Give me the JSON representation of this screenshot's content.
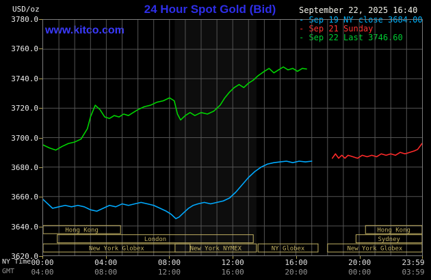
{
  "header": {
    "units_label": "USD/oz",
    "title": "24 Hour Spot Gold (Bid)",
    "datetime": "September 22, 2025 16:40",
    "site": "www.kitco.com",
    "legend": [
      {
        "label": "Sep 19 NY close 3684.00",
        "color": "#00b4ff"
      },
      {
        "label": "Sep 21 Sunday",
        "color": "#ff3333"
      },
      {
        "label": "Sep 22 Last 3746.60",
        "color": "#00cc33"
      }
    ]
  },
  "axes": {
    "x_row1_label": "NY Time",
    "x_row2_label": "GMT",
    "y_ticks": [
      "3780.0",
      "3760.0",
      "3740.0",
      "3720.0",
      "3700.0",
      "3680.0",
      "3660.0",
      "3640.0",
      "3620.0"
    ],
    "x_tick_hours": [
      0,
      4,
      8,
      12,
      16,
      20,
      23.983
    ],
    "x_ticks_ny": [
      "00:00",
      "04:00",
      "08:00",
      "12:00",
      "16:00",
      "20:00",
      "23:59"
    ],
    "x_ticks_gmt": [
      "04:00",
      "08:00",
      "12:00",
      "16:00",
      "20:00",
      "00:00",
      "03:59"
    ]
  },
  "chart_data": {
    "type": "line",
    "title": "24 Hour Spot Gold (Bid)",
    "ylabel": "USD/oz",
    "ylim": [
      3620,
      3780
    ],
    "y_step": 20,
    "xlim_hours": [
      0,
      23.983
    ],
    "grid": true,
    "legend_position": "top-right",
    "session_color": "#c3b264",
    "highlight_band_hours": [
      8.33,
      13.5
    ],
    "series": [
      {
        "name": "Sep 19 NY close",
        "color": "#00aaff",
        "close": 3684.0,
        "points": [
          [
            0,
            3658
          ],
          [
            0.3,
            3655
          ],
          [
            0.6,
            3652
          ],
          [
            1.0,
            3653
          ],
          [
            1.4,
            3654
          ],
          [
            1.8,
            3653
          ],
          [
            2.2,
            3654
          ],
          [
            2.6,
            3653
          ],
          [
            3.0,
            3651
          ],
          [
            3.4,
            3650
          ],
          [
            3.8,
            3652
          ],
          [
            4.2,
            3654
          ],
          [
            4.6,
            3653
          ],
          [
            5.0,
            3655
          ],
          [
            5.4,
            3654
          ],
          [
            5.8,
            3655
          ],
          [
            6.2,
            3656
          ],
          [
            6.6,
            3655
          ],
          [
            7.0,
            3654
          ],
          [
            7.4,
            3652
          ],
          [
            7.8,
            3650
          ],
          [
            8.1,
            3648
          ],
          [
            8.4,
            3645
          ],
          [
            8.6,
            3646
          ],
          [
            8.9,
            3649
          ],
          [
            9.2,
            3652
          ],
          [
            9.5,
            3654
          ],
          [
            9.8,
            3655
          ],
          [
            10.2,
            3656
          ],
          [
            10.6,
            3655
          ],
          [
            11.0,
            3656
          ],
          [
            11.4,
            3657
          ],
          [
            11.8,
            3659
          ],
          [
            12.2,
            3663
          ],
          [
            12.6,
            3668
          ],
          [
            13.0,
            3673
          ],
          [
            13.4,
            3677
          ],
          [
            13.8,
            3680
          ],
          [
            14.2,
            3682
          ],
          [
            14.6,
            3683
          ],
          [
            15.0,
            3683.5
          ],
          [
            15.4,
            3684
          ],
          [
            15.8,
            3683
          ],
          [
            16.2,
            3684
          ],
          [
            16.6,
            3683.5
          ],
          [
            17.0,
            3684
          ]
        ]
      },
      {
        "name": "Sep 21 Sunday",
        "color": "#ff2a2a",
        "points": [
          [
            18.3,
            3686
          ],
          [
            18.5,
            3689
          ],
          [
            18.7,
            3686
          ],
          [
            18.9,
            3688
          ],
          [
            19.1,
            3686
          ],
          [
            19.3,
            3688
          ],
          [
            19.6,
            3687
          ],
          [
            19.9,
            3686
          ],
          [
            20.2,
            3688
          ],
          [
            20.5,
            3687
          ],
          [
            20.8,
            3688
          ],
          [
            21.1,
            3687
          ],
          [
            21.4,
            3689
          ],
          [
            21.7,
            3688
          ],
          [
            22.0,
            3689
          ],
          [
            22.3,
            3688
          ],
          [
            22.6,
            3690
          ],
          [
            22.9,
            3689
          ],
          [
            23.2,
            3690
          ],
          [
            23.5,
            3691
          ],
          [
            23.7,
            3692
          ],
          [
            23.98,
            3696
          ]
        ]
      },
      {
        "name": "Sep 22 Last",
        "color": "#00d500",
        "last": 3746.6,
        "points": [
          [
            0,
            3695
          ],
          [
            0.4,
            3693
          ],
          [
            0.8,
            3691.5
          ],
          [
            1.2,
            3694
          ],
          [
            1.6,
            3696
          ],
          [
            2.0,
            3697
          ],
          [
            2.4,
            3699
          ],
          [
            2.8,
            3706
          ],
          [
            3.0,
            3714
          ],
          [
            3.3,
            3722
          ],
          [
            3.6,
            3719
          ],
          [
            3.9,
            3714
          ],
          [
            4.2,
            3713
          ],
          [
            4.5,
            3715
          ],
          [
            4.8,
            3714
          ],
          [
            5.1,
            3716
          ],
          [
            5.4,
            3715
          ],
          [
            5.7,
            3717
          ],
          [
            6.0,
            3719
          ],
          [
            6.4,
            3721
          ],
          [
            6.8,
            3722
          ],
          [
            7.2,
            3724
          ],
          [
            7.6,
            3725
          ],
          [
            8.0,
            3727
          ],
          [
            8.3,
            3725
          ],
          [
            8.5,
            3716
          ],
          [
            8.7,
            3712
          ],
          [
            9.0,
            3715
          ],
          [
            9.3,
            3717
          ],
          [
            9.6,
            3715
          ],
          [
            10.0,
            3717
          ],
          [
            10.4,
            3716
          ],
          [
            10.8,
            3718
          ],
          [
            11.2,
            3722
          ],
          [
            11.5,
            3727
          ],
          [
            11.8,
            3731
          ],
          [
            12.1,
            3734
          ],
          [
            12.4,
            3736
          ],
          [
            12.7,
            3734
          ],
          [
            13.0,
            3737
          ],
          [
            13.3,
            3739
          ],
          [
            13.6,
            3742
          ],
          [
            14.0,
            3745
          ],
          [
            14.3,
            3747
          ],
          [
            14.6,
            3744
          ],
          [
            14.9,
            3746
          ],
          [
            15.2,
            3748
          ],
          [
            15.5,
            3746
          ],
          [
            15.8,
            3747
          ],
          [
            16.1,
            3745
          ],
          [
            16.4,
            3747
          ],
          [
            16.67,
            3746.6
          ]
        ]
      }
    ],
    "sessions": [
      {
        "row": 0,
        "label": "Hong Kong",
        "start": 0,
        "end": 4.9
      },
      {
        "row": 0,
        "label": "Hong Kong",
        "start": 20.4,
        "end": 23.983
      },
      {
        "row": 1,
        "label": "London",
        "start": 0.9,
        "end": 13.3
      },
      {
        "row": 1,
        "label": "Sydney",
        "start": 19.8,
        "end": 23.983
      },
      {
        "row": 2,
        "label": "New York Globex",
        "start": 0,
        "end": 9.3
      },
      {
        "row": 2,
        "label": "New York NYMEX",
        "start": 8.35,
        "end": 13.5
      },
      {
        "row": 2,
        "label": "NY Globex",
        "start": 13.6,
        "end": 17.4
      },
      {
        "row": 2,
        "label": "New York Globex",
        "start": 18.0,
        "end": 23.983
      }
    ]
  }
}
